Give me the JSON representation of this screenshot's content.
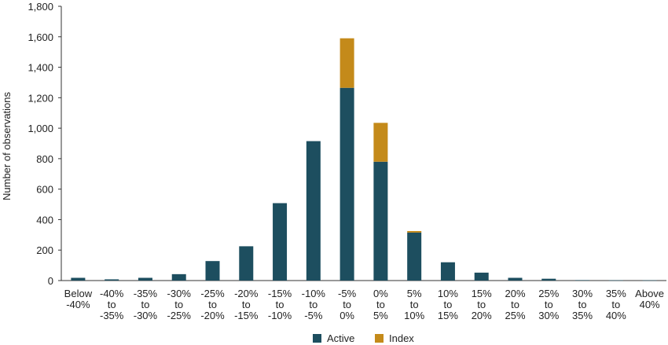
{
  "chart_data": {
    "type": "bar",
    "stacked": true,
    "title": "",
    "xlabel": "",
    "ylabel": "Number of observations",
    "ylim": [
      0,
      1800
    ],
    "yticks": [
      0,
      200,
      400,
      600,
      800,
      1000,
      1200,
      1400,
      1600,
      1800
    ],
    "ytick_labels": [
      "0",
      "200",
      "400",
      "600",
      "800",
      "1,000",
      "1,200",
      "1,400",
      "1,600",
      "1,800"
    ],
    "grid": false,
    "legend": "bottom",
    "categories": [
      [
        "Below",
        "-40%"
      ],
      [
        "-40%",
        "to",
        "-35%"
      ],
      [
        "-35%",
        "to",
        "-30%"
      ],
      [
        "-30%",
        "to",
        "-25%"
      ],
      [
        "-25%",
        "to",
        "-20%"
      ],
      [
        "-20%",
        "to",
        "-15%"
      ],
      [
        "-15%",
        "to",
        "-10%"
      ],
      [
        "-10%",
        "to",
        "-5%"
      ],
      [
        "-5%",
        "to",
        "0%"
      ],
      [
        "0%",
        "to",
        "5%"
      ],
      [
        "5%",
        "to",
        "10%"
      ],
      [
        "10%",
        "to",
        "15%"
      ],
      [
        "15%",
        "to",
        "20%"
      ],
      [
        "20%",
        "to",
        "25%"
      ],
      [
        "25%",
        "to",
        "30%"
      ],
      [
        "30%",
        "to",
        "35%"
      ],
      [
        "35%",
        "to",
        "40%"
      ],
      [
        "Above",
        "40%"
      ]
    ],
    "series": [
      {
        "name": "Active",
        "color": "#1d4e5f",
        "values": [
          18,
          8,
          18,
          42,
          128,
          225,
          508,
          915,
          1265,
          780,
          315,
          120,
          52,
          18,
          12,
          3,
          2,
          2
        ]
      },
      {
        "name": "Index",
        "color": "#c48a1a",
        "values": [
          0,
          0,
          0,
          0,
          0,
          0,
          0,
          0,
          325,
          255,
          10,
          0,
          0,
          0,
          0,
          0,
          0,
          0
        ]
      }
    ]
  }
}
